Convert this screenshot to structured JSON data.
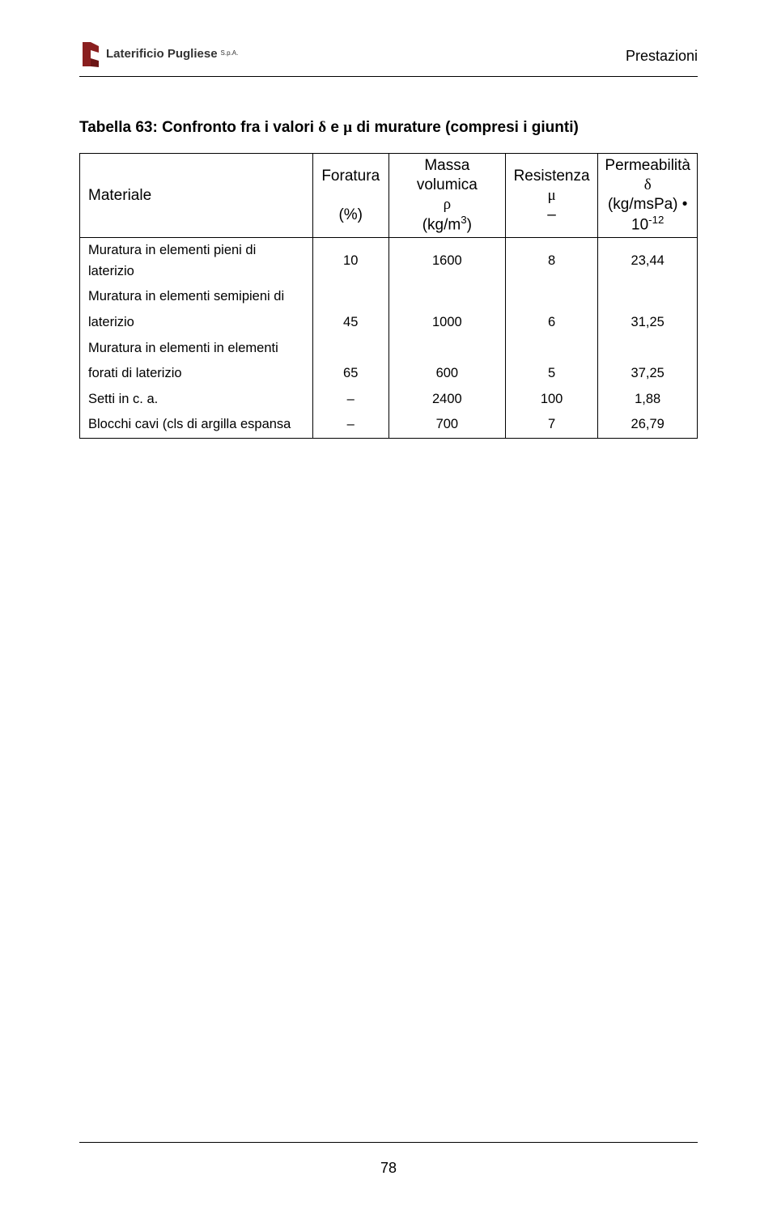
{
  "header": {
    "logo_company": "Laterificio Pugliese",
    "logo_suffix": "S.p.A.",
    "logo_colors": {
      "brick": "#8a1f1f",
      "text": "#2b2b2b"
    },
    "right_label": "Prestazioni"
  },
  "title": {
    "prefix_bold": "Tabella 63: Confronto fra i valori ",
    "symbol1": "δ",
    "mid_bold": " e ",
    "symbol2": "μ",
    "suffix_bold": " di murature (compresi i giunti)"
  },
  "table": {
    "columns": {
      "materiale": {
        "line1": "Materiale"
      },
      "foratura": {
        "line1": "Foratura",
        "line3": "(%)"
      },
      "massa": {
        "line1": "Massa volumica",
        "line2": "ρ",
        "line3_pre": "(kg/m",
        "line3_sup": "3",
        "line3_post": ")"
      },
      "resistenza": {
        "line1": "Resistenza",
        "line2": "μ",
        "line3": "–"
      },
      "permeabilita": {
        "line1": "Permeabilità",
        "line2": "δ",
        "line3_pre": "(kg/msPa) • 10",
        "line3_sup": "-12"
      }
    },
    "rows": [
      {
        "label_lines": [
          "Muratura in elementi pieni di laterizio"
        ],
        "foratura": "10",
        "massa": "1600",
        "resistenza": "8",
        "perm": "23,44"
      },
      {
        "label_lines": [
          "Muratura in elementi semipieni di",
          "laterizio"
        ],
        "foratura": "45",
        "massa": "1000",
        "resistenza": "6",
        "perm": "31,25"
      },
      {
        "label_lines": [
          "Muratura in elementi in elementi",
          "forati di laterizio"
        ],
        "foratura": "65",
        "massa": "600",
        "resistenza": "5",
        "perm": "37,25"
      },
      {
        "label_lines": [
          "Setti in c. a."
        ],
        "foratura": "–",
        "massa": "2400",
        "resistenza": "100",
        "perm": "1,88"
      },
      {
        "label_lines": [
          "Blocchi cavi (cls di argilla espansa"
        ],
        "foratura": "–",
        "massa": "700",
        "resistenza": "7",
        "perm": "26,79"
      }
    ]
  },
  "footer": {
    "page_number": "78"
  }
}
